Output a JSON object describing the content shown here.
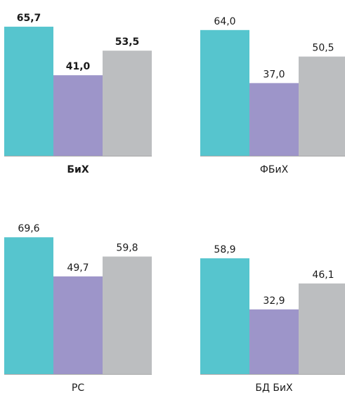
{
  "chart_data": {
    "type": "bar",
    "series_colors": [
      "#56C5CE",
      "#9D95C9",
      "#BCBEC0"
    ],
    "ylim": [
      0,
      70
    ],
    "grid": false,
    "legend": "none",
    "groups": [
      {
        "label": "БиХ",
        "bold": true,
        "values": [
          65.7,
          41.0,
          53.5
        ],
        "value_labels": [
          "65,7",
          "41,0",
          "53,5"
        ]
      },
      {
        "label": "ФБиХ",
        "bold": false,
        "values": [
          64.0,
          37.0,
          50.5
        ],
        "value_labels": [
          "64,0",
          "37,0",
          "50,5"
        ]
      },
      {
        "label": "РС",
        "bold": false,
        "values": [
          69.6,
          49.7,
          59.8
        ],
        "value_labels": [
          "69,6",
          "49,7",
          "59,8"
        ]
      },
      {
        "label": "БД БиХ",
        "bold": false,
        "values": [
          58.9,
          32.9,
          46.1
        ],
        "value_labels": [
          "58,9",
          "32,9",
          "46,1"
        ]
      }
    ]
  }
}
